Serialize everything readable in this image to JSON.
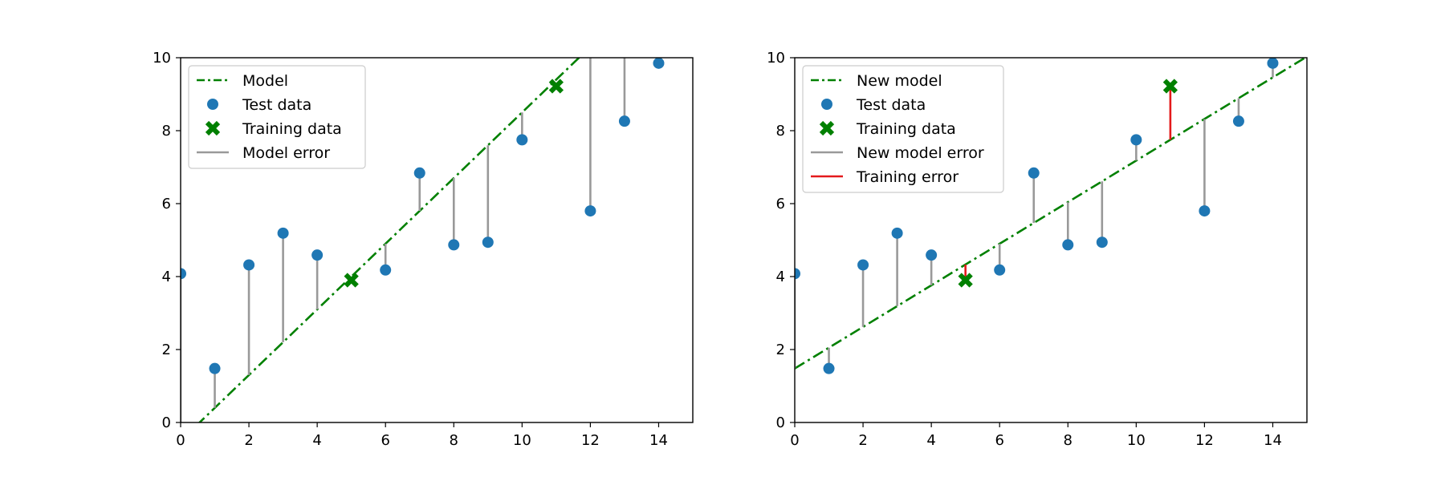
{
  "colors": {
    "model_line": "#008000",
    "test_point": "#1f77b4",
    "training_marker": "#008000",
    "model_error": "#999999",
    "training_error": "#e41a1c",
    "axis": "#000000",
    "legend_border": "#cccccc"
  },
  "chart_data": [
    {
      "type": "scatter",
      "title": "",
      "xlabel": "",
      "ylabel": "",
      "xlim": [
        0,
        15
      ],
      "ylim": [
        0,
        10
      ],
      "xticks": [
        "0",
        "2",
        "4",
        "6",
        "8",
        "10",
        "12",
        "14"
      ],
      "yticks": [
        "0",
        "2",
        "4",
        "6",
        "8",
        "10"
      ],
      "grid": false,
      "legend_position": "upper-left",
      "model": {
        "label": "Model",
        "slope": 0.9,
        "intercept": -0.5,
        "style": "dash-dot"
      },
      "test_data": {
        "label": "Test data",
        "x": [
          0,
          1,
          2,
          3,
          4,
          6,
          7,
          8,
          9,
          10,
          12,
          13,
          14
        ],
        "y": [
          4.08,
          1.48,
          4.32,
          5.19,
          4.59,
          4.18,
          6.84,
          4.87,
          4.94,
          7.75,
          5.8,
          8.26,
          9.85
        ]
      },
      "training_data": {
        "label": "Training data",
        "x": [
          5,
          11
        ],
        "y": [
          3.9,
          9.22
        ]
      },
      "model_error": {
        "label": "Model error",
        "applies_to": "test_data"
      }
    },
    {
      "type": "scatter",
      "title": "",
      "xlabel": "",
      "ylabel": "",
      "xlim": [
        0,
        15
      ],
      "ylim": [
        0,
        10
      ],
      "xticks": [
        "0",
        "2",
        "4",
        "6",
        "8",
        "10",
        "12",
        "14"
      ],
      "yticks": [
        "0",
        "2",
        "4",
        "6",
        "8",
        "10"
      ],
      "grid": false,
      "legend_position": "upper-left",
      "model": {
        "label": "New model",
        "slope": 0.57,
        "intercept": 1.48,
        "style": "dash-dot"
      },
      "test_data": {
        "label": "Test data",
        "x": [
          0,
          1,
          2,
          3,
          4,
          6,
          7,
          8,
          9,
          10,
          12,
          13,
          14
        ],
        "y": [
          4.08,
          1.48,
          4.32,
          5.19,
          4.59,
          4.18,
          6.84,
          4.87,
          4.94,
          7.75,
          5.8,
          8.26,
          9.85
        ]
      },
      "training_data": {
        "label": "Training data",
        "x": [
          5,
          11
        ],
        "y": [
          3.9,
          9.22
        ]
      },
      "model_error": {
        "label": "New model error",
        "applies_to": "test_data"
      },
      "training_error": {
        "label": "Training error",
        "applies_to": "training_data"
      }
    }
  ]
}
